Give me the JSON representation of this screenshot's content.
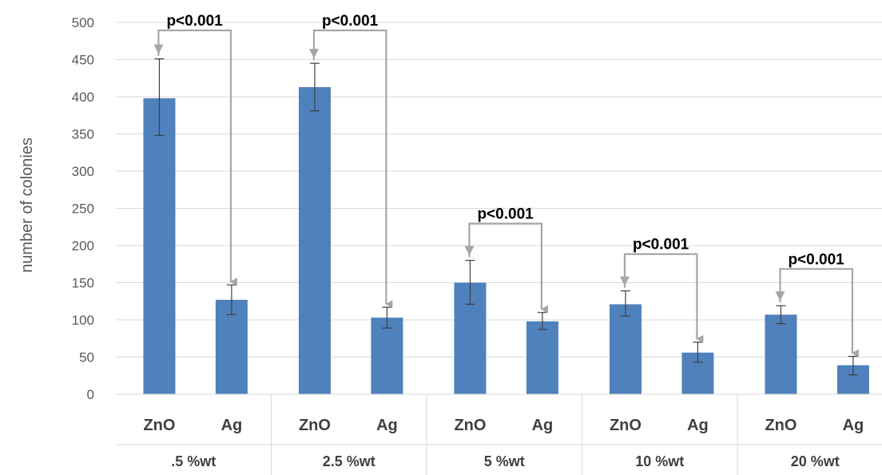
{
  "chart_data": {
    "type": "bar",
    "ylabel": "number of colonies",
    "xlabel": "",
    "ylim": [
      0,
      500
    ],
    "yticks": [
      0,
      50,
      100,
      150,
      200,
      250,
      300,
      350,
      400,
      450,
      500
    ],
    "grid": true,
    "legend": "none",
    "bar_color": "#4F81BD",
    "error_color": "#404040",
    "annotation_color": "#A6A6A6",
    "groups": [
      {
        "label": ".5 %wt",
        "bars": [
          {
            "category": "ZnO",
            "value": 398,
            "err_low": 50,
            "err_high": 53
          },
          {
            "category": "Ag",
            "value": 127,
            "err_low": 20,
            "err_high": 20
          }
        ],
        "annotation": "p<0.001"
      },
      {
        "label": "2.5 %wt",
        "bars": [
          {
            "category": "ZnO",
            "value": 413,
            "err_low": 32,
            "err_high": 32
          },
          {
            "category": "Ag",
            "value": 103,
            "err_low": 14,
            "err_high": 14
          }
        ],
        "annotation": "p<0.001"
      },
      {
        "label": "5 %wt",
        "bars": [
          {
            "category": "ZnO",
            "value": 150,
            "err_low": 29,
            "err_high": 30
          },
          {
            "category": "Ag",
            "value": 98,
            "err_low": 11,
            "err_high": 12
          }
        ],
        "annotation": "p<0.001"
      },
      {
        "label": "10 %wt",
        "bars": [
          {
            "category": "ZnO",
            "value": 121,
            "err_low": 16,
            "err_high": 18
          },
          {
            "category": "Ag",
            "value": 56,
            "err_low": 13,
            "err_high": 14
          }
        ],
        "annotation": "p<0.001"
      },
      {
        "label": "20 %wt",
        "bars": [
          {
            "category": "ZnO",
            "value": 107,
            "err_low": 12,
            "err_high": 12
          },
          {
            "category": "Ag",
            "value": 39,
            "err_low": 13,
            "err_high": 12
          }
        ],
        "annotation": "p<0.001"
      }
    ]
  }
}
